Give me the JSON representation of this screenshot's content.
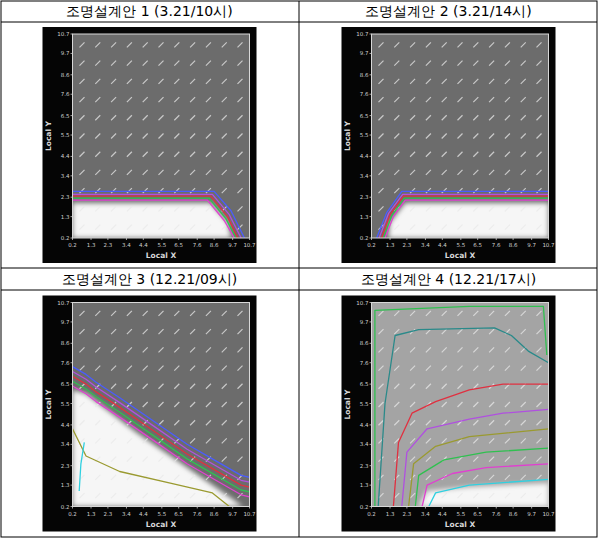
{
  "chart_data": [
    {
      "type": "contour",
      "title": "조명설계안 1 (3.21/10시)",
      "x_label": "Local X",
      "y_label": "Local Y",
      "color": "#6c6c6c",
      "xlim": [
        0.2,
        10.7
      ],
      "ylim": [
        0.2,
        10.7
      ],
      "xticks": [
        0.2,
        1.3,
        2.3,
        3.4,
        4.4,
        5.5,
        6.5,
        7.6,
        8.6,
        9.7,
        10.7
      ],
      "yticks": [
        0.2,
        1.3,
        2.3,
        3.4,
        4.4,
        5.5,
        6.5,
        7.6,
        8.6,
        9.7,
        10.7
      ],
      "bright_region": {
        "x": [
          0.2,
          0.2,
          8.4,
          9.4,
          9.6
        ],
        "y": [
          0.2,
          2.0,
          2.0,
          1.0,
          0.2
        ]
      },
      "contours": [
        {
          "color": "#4a5cff",
          "x": [
            0.2,
            8.6,
            9.6,
            10.4
          ],
          "y": [
            2.6,
            2.6,
            1.6,
            0.2
          ]
        },
        {
          "color": "#b050e0",
          "x": [
            0.2,
            8.5,
            9.5,
            10.2
          ],
          "y": [
            2.45,
            2.45,
            1.4,
            0.2
          ]
        },
        {
          "color": "#e03040",
          "x": [
            0.2,
            8.4,
            9.4,
            10.0
          ],
          "y": [
            2.35,
            2.35,
            1.3,
            0.2
          ]
        },
        {
          "color": "#30c050",
          "x": [
            0.2,
            8.3,
            9.3,
            9.9
          ],
          "y": [
            2.25,
            2.25,
            1.2,
            0.2
          ]
        },
        {
          "color": "#e040d0",
          "x": [
            0.2,
            8.2,
            9.2,
            9.8
          ],
          "y": [
            2.15,
            2.15,
            1.1,
            0.2
          ]
        }
      ]
    },
    {
      "type": "contour",
      "title": "조명설계안 2 (3.21/14시)",
      "x_label": "Local X",
      "y_label": "Local Y",
      "color": "#6c6c6c",
      "xlim": [
        0.2,
        10.7
      ],
      "ylim": [
        0.2,
        10.7
      ],
      "xticks": [
        0.2,
        1.3,
        2.3,
        3.4,
        4.4,
        5.5,
        6.5,
        7.6,
        8.6,
        9.7,
        10.7
      ],
      "yticks": [
        0.2,
        1.3,
        2.3,
        3.4,
        4.4,
        5.5,
        6.5,
        7.6,
        8.6,
        9.7,
        10.7
      ],
      "bright_region": {
        "x": [
          1.2,
          1.3,
          2.2,
          10.7,
          10.7
        ],
        "y": [
          0.2,
          1.0,
          2.0,
          2.0,
          0.2
        ]
      },
      "contours": [
        {
          "color": "#4a5cff",
          "x": [
            0.5,
            1.1,
            2.0,
            10.7
          ],
          "y": [
            0.2,
            1.5,
            2.6,
            2.6
          ]
        },
        {
          "color": "#b050e0",
          "x": [
            0.65,
            1.2,
            2.05,
            10.7
          ],
          "y": [
            0.2,
            1.45,
            2.45,
            2.45
          ]
        },
        {
          "color": "#e03040",
          "x": [
            0.8,
            1.3,
            2.1,
            10.7
          ],
          "y": [
            0.2,
            1.4,
            2.35,
            2.35
          ]
        },
        {
          "color": "#30c050",
          "x": [
            0.9,
            1.4,
            2.15,
            10.7
          ],
          "y": [
            0.2,
            1.35,
            2.25,
            2.25
          ]
        },
        {
          "color": "#e040d0",
          "x": [
            1.0,
            1.5,
            2.2,
            10.7
          ],
          "y": [
            0.2,
            1.3,
            2.15,
            2.15
          ]
        }
      ]
    },
    {
      "type": "contour",
      "title": "조명설계안 3 (12.21/09시)",
      "x_label": "Local X",
      "y_label": "Local Y",
      "color": "#6c6c6c",
      "xlim": [
        0.2,
        10.7
      ],
      "ylim": [
        0.2,
        10.7
      ],
      "xticks": [
        0.2,
        1.3,
        2.3,
        3.4,
        4.4,
        5.5,
        6.5,
        7.6,
        8.6,
        9.7,
        10.7
      ],
      "yticks": [
        0.2,
        1.3,
        2.3,
        3.4,
        4.4,
        5.5,
        6.5,
        7.6,
        8.6,
        9.7,
        10.7
      ],
      "bright_region": {
        "x": [
          0.2,
          0.2,
          1.0,
          1.6,
          4.0,
          6.5,
          9.0,
          10.3
        ],
        "y": [
          0.2,
          6.2,
          6.0,
          5.6,
          4.0,
          2.5,
          1.0,
          0.2
        ]
      },
      "contours": [
        {
          "color": "#4a5cff",
          "x": [
            0.2,
            1.0,
            1.6,
            3.0,
            5.0,
            7.0,
            8.6,
            10.2,
            10.7
          ],
          "y": [
            7.4,
            7.0,
            6.6,
            5.8,
            4.6,
            3.4,
            2.6,
            1.8,
            1.7
          ]
        },
        {
          "color": "#b050e0",
          "x": [
            0.2,
            1.0,
            1.6,
            3.0,
            5.0,
            7.0,
            8.6,
            10.2,
            10.7
          ],
          "y": [
            7.15,
            6.75,
            6.35,
            5.55,
            4.35,
            3.15,
            2.35,
            1.55,
            1.45
          ]
        },
        {
          "color": "#e03040",
          "x": [
            0.2,
            1.0,
            1.6,
            3.0,
            5.0,
            7.0,
            8.6,
            10.2,
            10.7
          ],
          "y": [
            6.9,
            6.5,
            6.1,
            5.3,
            4.1,
            2.9,
            2.1,
            1.3,
            1.2
          ]
        },
        {
          "color": "#30c050",
          "x": [
            0.2,
            1.0,
            1.6,
            3.0,
            5.0,
            7.0,
            8.6,
            10.2,
            10.7
          ],
          "y": [
            6.65,
            6.25,
            5.85,
            5.05,
            3.85,
            2.65,
            1.85,
            1.05,
            0.95
          ]
        },
        {
          "color": "#e040d0",
          "x": [
            0.2,
            1.0,
            1.6,
            3.0,
            5.0,
            7.0,
            8.6,
            10.2,
            10.7
          ],
          "y": [
            6.4,
            6.0,
            5.6,
            4.8,
            3.6,
            2.4,
            1.6,
            0.8,
            0.7
          ]
        },
        {
          "color": "#9a9a30",
          "x": [
            0.2,
            1.0,
            3.0,
            6.0,
            8.5,
            9.5
          ],
          "y": [
            4.2,
            2.8,
            2.0,
            1.4,
            0.9,
            0.2
          ]
        },
        {
          "color": "#30d0e0",
          "x": [
            0.6,
            0.7,
            0.9
          ],
          "y": [
            1.0,
            2.4,
            3.5
          ]
        }
      ]
    },
    {
      "type": "contour",
      "title": "조명설계안 4 (12.21/17시)",
      "x_label": "Local X",
      "y_label": "Local Y",
      "color": "#a4a4a4",
      "xlim": [
        0.2,
        10.7
      ],
      "ylim": [
        0.2,
        10.7
      ],
      "xticks": [
        0.2,
        1.3,
        2.3,
        3.4,
        4.4,
        5.5,
        6.5,
        7.6,
        8.6,
        9.7,
        10.7
      ],
      "yticks": [
        0.2,
        1.3,
        2.3,
        3.4,
        4.4,
        5.5,
        6.5,
        7.6,
        8.6,
        9.7,
        10.7
      ],
      "bright_region": {
        "x": [
          3.0,
          3.5,
          6.0,
          10.7,
          10.7
        ],
        "y": [
          0.2,
          1.0,
          1.2,
          1.4,
          0.2
        ]
      },
      "contours": [
        {
          "color": "#30c050",
          "x": [
            0.4,
            0.4,
            6.0,
            10.4,
            10.6
          ],
          "y": [
            0.2,
            10.3,
            10.5,
            10.5,
            8.0
          ]
        },
        {
          "color": "#2a8a8a",
          "x": [
            0.6,
            1.0,
            1.6,
            3.0,
            7.5,
            8.5,
            9.5,
            10.7
          ],
          "y": [
            0.2,
            5.5,
            9.0,
            9.3,
            9.4,
            9.0,
            8.2,
            7.6
          ]
        },
        {
          "color": "#e03040",
          "x": [
            1.5,
            1.8,
            2.6,
            4.0,
            6.0,
            8.0,
            10.7
          ],
          "y": [
            0.2,
            3.5,
            5.0,
            5.6,
            6.2,
            6.5,
            6.5
          ]
        },
        {
          "color": "#b050e0",
          "x": [
            2.0,
            2.3,
            3.5,
            6.0,
            8.0,
            10.7
          ],
          "y": [
            0.2,
            3.0,
            4.2,
            4.7,
            5.0,
            5.2
          ]
        },
        {
          "color": "#9a9a30",
          "x": [
            2.4,
            2.7,
            4.0,
            6.0,
            10.7
          ],
          "y": [
            0.2,
            2.4,
            3.3,
            3.8,
            4.2
          ]
        },
        {
          "color": "#30c050",
          "x": [
            2.8,
            3.0,
            4.5,
            7.0,
            10.7
          ],
          "y": [
            0.2,
            1.8,
            2.6,
            3.0,
            3.2
          ]
        },
        {
          "color": "#e040d0",
          "x": [
            3.2,
            3.5,
            5.0,
            7.0,
            10.7
          ],
          "y": [
            0.2,
            1.3,
            1.9,
            2.2,
            2.4
          ]
        },
        {
          "color": "#30d0e0",
          "x": [
            3.6,
            4.0,
            6.0,
            10.7
          ],
          "y": [
            0.2,
            0.9,
            1.3,
            1.6
          ]
        }
      ]
    }
  ]
}
